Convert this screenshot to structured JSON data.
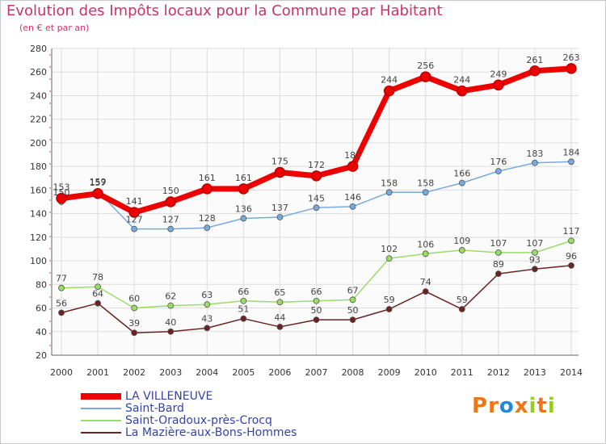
{
  "header": {
    "title": "Evolution des Impôts locaux pour la Commune par Habitant",
    "subtitle": "(en € et par an)"
  },
  "chart_data": {
    "type": "line",
    "title": "Evolution des Impôts locaux pour la Commune par Habitant",
    "subtitle": "(en € et par an)",
    "xlabel": "",
    "ylabel": "",
    "ylim": [
      20,
      280
    ],
    "yticks": [
      20,
      40,
      60,
      80,
      100,
      120,
      140,
      160,
      180,
      200,
      220,
      240,
      260,
      280
    ],
    "grid": true,
    "x": [
      "2000",
      "2001",
      "2002",
      "2003",
      "2004",
      "2005",
      "2006",
      "2007",
      "2008",
      "2009",
      "2010",
      "2011",
      "2012",
      "2013",
      "2014"
    ],
    "series": [
      {
        "name": "LA VILLENEUVE",
        "color": "#ee0000",
        "values": [
          153,
          157,
          141,
          150,
          161,
          161,
          175,
          172,
          180,
          244,
          256,
          244,
          249,
          261,
          263
        ]
      },
      {
        "name": "Saint-Bard",
        "color": "#77aadd",
        "values": [
          150,
          159,
          127,
          127,
          128,
          136,
          137,
          145,
          146,
          158,
          158,
          166,
          176,
          183,
          184
        ]
      },
      {
        "name": "Saint-Oradoux-près-Crocq",
        "color": "#99dd66",
        "values": [
          77,
          78,
          60,
          62,
          63,
          66,
          65,
          66,
          67,
          102,
          106,
          109,
          107,
          107,
          117
        ]
      },
      {
        "name": "La Mazière-aux-Bons-Hommes",
        "color": "#6b2222",
        "values": [
          56,
          64,
          39,
          40,
          43,
          51,
          44,
          50,
          50,
          59,
          74,
          59,
          89,
          93,
          96
        ]
      }
    ],
    "legend_position": "bottom-left"
  },
  "logo": {
    "letters": [
      {
        "ch": "P",
        "color": "#ee7711"
      },
      {
        "ch": "r",
        "color": "#ee7711"
      },
      {
        "ch": "o",
        "color": "#2288dd"
      },
      {
        "ch": "x",
        "color": "#ee7711"
      },
      {
        "ch": "i",
        "color": "#99cc22"
      },
      {
        "ch": "t",
        "color": "#ee7711"
      },
      {
        "ch": "i",
        "color": "#99cc22"
      }
    ]
  }
}
